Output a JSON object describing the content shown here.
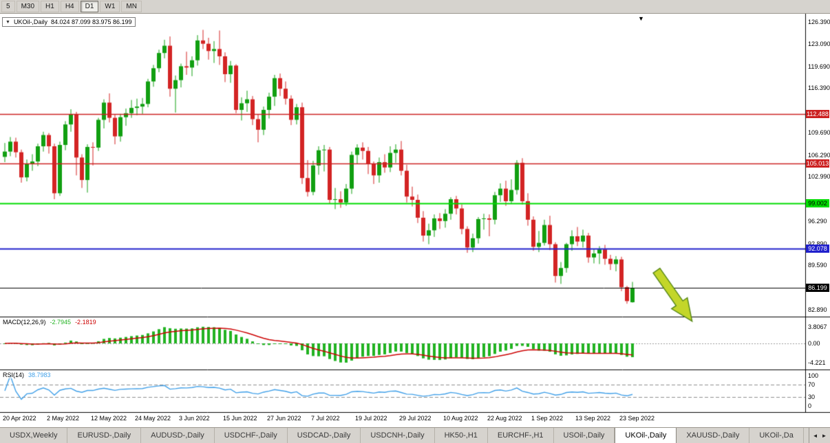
{
  "toolbar": {
    "periods": [
      {
        "label": "5",
        "active": false
      },
      {
        "label": "M30",
        "active": false
      },
      {
        "label": "H1",
        "active": false
      },
      {
        "label": "H4",
        "active": false
      },
      {
        "label": "D1",
        "active": true
      },
      {
        "label": "W1",
        "active": false
      },
      {
        "label": "MN",
        "active": false
      }
    ]
  },
  "chart": {
    "collapse_icon": "▼",
    "symbol_label": "UKOil-,Daily",
    "ohlc_label": "84.024 87.099 83.975 86.199",
    "shift_marker": "▼",
    "price_ticks": [
      "126.390",
      "123.090",
      "119.690",
      "116.390",
      "109.690",
      "106.290",
      "102.990",
      "96.290",
      "92.890",
      "89.590",
      "82.890"
    ],
    "hlines": [
      {
        "price": 112.488,
        "label": "112.488",
        "color": "#cc2020",
        "width": 1.5,
        "badge_bg": "#cc2020",
        "badge_fg": "#ffffff"
      },
      {
        "price": 105.013,
        "label": "105.013",
        "color": "#cc2020",
        "width": 1.5,
        "badge_bg": "#cc2020",
        "badge_fg": "#ffffff"
      },
      {
        "price": 99.002,
        "label": "99.002",
        "color": "#00dc00",
        "width": 2,
        "badge_bg": "#00dc00",
        "badge_fg": "#000000"
      },
      {
        "price": 92.078,
        "label": "92.078",
        "color": "#2020cc",
        "width": 2,
        "badge_bg": "#2020cc",
        "badge_fg": "#ffffff"
      },
      {
        "price": 86.199,
        "label": "86.199",
        "color": "#000000",
        "width": 1,
        "badge_bg": "#000000",
        "badge_fg": "#ffffff"
      }
    ],
    "colors": {
      "up": "#119f11",
      "down": "#d32424",
      "arrow_fill": "#c3d629",
      "arrow_stroke": "#5a8a1a"
    }
  },
  "chart_data": {
    "type": "candlestick",
    "symbol": "UKOil-",
    "timeframe": "Daily",
    "current_bar": {
      "open": 84.024,
      "high": 87.099,
      "low": 83.975,
      "close": 86.199
    },
    "y_axis_range": [
      81.8,
      127.6
    ],
    "horizontal_levels": [
      112.488,
      105.013,
      99.002,
      92.078,
      86.199
    ],
    "x_labels": [
      {
        "label": "20 Apr 2022",
        "i": 0
      },
      {
        "label": "2 May 2022",
        "i": 8
      },
      {
        "label": "12 May 2022",
        "i": 16
      },
      {
        "label": "24 May 2022",
        "i": 24
      },
      {
        "label": "3 Jun 2022",
        "i": 32
      },
      {
        "label": "15 Jun 2022",
        "i": 40
      },
      {
        "label": "27 Jun 2022",
        "i": 48
      },
      {
        "label": "7 Jul 2022",
        "i": 56
      },
      {
        "label": "19 Jul 2022",
        "i": 64
      },
      {
        "label": "29 Jul 2022",
        "i": 72
      },
      {
        "label": "10 Aug 2022",
        "i": 80
      },
      {
        "label": "22 Aug 2022",
        "i": 88
      },
      {
        "label": "1 Sep 2022",
        "i": 96
      },
      {
        "label": "13 Sep 2022",
        "i": 104
      },
      {
        "label": "23 Sep 2022",
        "i": 112
      }
    ],
    "candles_ohlc": [
      [
        106.0,
        108.1,
        105.2,
        106.8
      ],
      [
        106.8,
        109.0,
        106.1,
        108.3
      ],
      [
        108.3,
        108.9,
        105.9,
        106.7
      ],
      [
        106.7,
        107.1,
        102.1,
        102.9
      ],
      [
        102.9,
        105.6,
        102.3,
        105.0
      ],
      [
        105.0,
        106.4,
        103.9,
        105.3
      ],
      [
        105.3,
        108.0,
        104.6,
        107.6
      ],
      [
        107.6,
        109.8,
        106.8,
        109.3
      ],
      [
        109.3,
        109.6,
        106.5,
        107.6
      ],
      [
        107.6,
        108.0,
        99.6,
        100.5
      ],
      [
        100.5,
        108.3,
        100.1,
        107.8
      ],
      [
        107.8,
        111.4,
        107.0,
        110.9
      ],
      [
        110.9,
        113.2,
        109.8,
        112.4
      ],
      [
        112.4,
        112.8,
        103.2,
        105.9
      ],
      [
        105.9,
        106.4,
        101.3,
        102.5
      ],
      [
        102.5,
        107.9,
        100.6,
        107.5
      ],
      [
        107.5,
        108.2,
        104.7,
        107.4
      ],
      [
        107.4,
        111.9,
        106.9,
        111.6
      ],
      [
        111.6,
        114.7,
        110.3,
        114.2
      ],
      [
        114.2,
        115.6,
        111.2,
        111.9
      ],
      [
        111.9,
        112.4,
        107.9,
        109.1
      ],
      [
        109.1,
        112.5,
        108.3,
        112.0
      ],
      [
        112.0,
        113.3,
        110.7,
        112.6
      ],
      [
        112.6,
        114.6,
        111.9,
        113.4
      ],
      [
        113.4,
        114.8,
        112.3,
        113.6
      ],
      [
        113.6,
        114.9,
        112.5,
        114.0
      ],
      [
        114.0,
        117.8,
        113.5,
        117.4
      ],
      [
        117.4,
        119.9,
        116.6,
        119.4
      ],
      [
        119.4,
        122.2,
        118.8,
        121.7
      ],
      [
        121.7,
        123.7,
        120.9,
        122.8
      ],
      [
        122.8,
        124.2,
        115.1,
        116.3
      ],
      [
        116.3,
        118.3,
        112.7,
        117.6
      ],
      [
        117.6,
        120.1,
        116.5,
        119.7
      ],
      [
        119.7,
        121.9,
        118.4,
        119.5
      ],
      [
        119.5,
        121.2,
        118.2,
        120.6
      ],
      [
        120.6,
        124.4,
        119.8,
        123.6
      ],
      [
        123.6,
        125.2,
        122.3,
        123.1
      ],
      [
        123.1,
        124.0,
        120.7,
        122.0
      ],
      [
        122.0,
        123.5,
        120.2,
        122.3
      ],
      [
        122.3,
        125.1,
        119.9,
        121.2
      ],
      [
        121.2,
        121.8,
        117.3,
        118.5
      ],
      [
        118.5,
        120.5,
        117.2,
        119.8
      ],
      [
        119.8,
        120.0,
        112.6,
        113.1
      ],
      [
        113.1,
        115.0,
        111.5,
        114.1
      ],
      [
        114.1,
        116.0,
        112.8,
        114.7
      ],
      [
        114.7,
        115.2,
        110.8,
        111.7
      ],
      [
        111.7,
        112.4,
        108.2,
        110.1
      ],
      [
        110.1,
        113.6,
        109.3,
        113.1
      ],
      [
        113.1,
        115.7,
        111.8,
        115.1
      ],
      [
        115.1,
        118.4,
        113.7,
        117.9
      ],
      [
        117.9,
        118.6,
        115.2,
        116.3
      ],
      [
        116.3,
        117.4,
        113.9,
        114.8
      ],
      [
        114.8,
        115.3,
        110.8,
        111.6
      ],
      [
        111.6,
        114.0,
        110.9,
        113.5
      ],
      [
        113.5,
        114.2,
        101.9,
        102.8
      ],
      [
        102.8,
        105.5,
        100.0,
        100.7
      ],
      [
        100.7,
        105.4,
        100.2,
        104.7
      ],
      [
        104.7,
        107.6,
        103.3,
        107.0
      ],
      [
        107.0,
        107.8,
        103.8,
        107.1
      ],
      [
        107.1,
        107.5,
        98.9,
        99.5
      ],
      [
        99.5,
        101.3,
        98.1,
        99.6
      ],
      [
        99.6,
        100.8,
        98.3,
        99.1
      ],
      [
        99.1,
        101.9,
        98.6,
        101.2
      ],
      [
        101.2,
        106.8,
        100.4,
        106.3
      ],
      [
        106.3,
        107.9,
        104.9,
        107.4
      ],
      [
        107.4,
        108.2,
        105.6,
        106.9
      ],
      [
        106.9,
        107.5,
        103.4,
        104.9
      ],
      [
        104.9,
        105.3,
        101.9,
        103.2
      ],
      [
        103.2,
        105.9,
        102.1,
        105.2
      ],
      [
        105.2,
        106.4,
        103.6,
        104.4
      ],
      [
        104.4,
        107.6,
        103.7,
        106.6
      ],
      [
        106.6,
        107.9,
        105.1,
        107.1
      ],
      [
        107.1,
        108.4,
        103.2,
        103.9
      ],
      [
        103.9,
        104.8,
        99.1,
        100.0
      ],
      [
        100.0,
        101.5,
        98.5,
        99.5
      ],
      [
        99.5,
        100.3,
        96.0,
        96.8
      ],
      [
        96.8,
        97.8,
        93.2,
        94.1
      ],
      [
        94.1,
        95.9,
        92.8,
        94.9
      ],
      [
        94.9,
        97.3,
        93.9,
        96.7
      ],
      [
        96.7,
        97.5,
        95.1,
        96.3
      ],
      [
        96.3,
        98.1,
        95.3,
        97.4
      ],
      [
        97.4,
        99.9,
        96.5,
        99.6
      ],
      [
        99.6,
        100.1,
        97.3,
        98.2
      ],
      [
        98.2,
        98.8,
        94.3,
        95.1
      ],
      [
        95.1,
        95.5,
        91.5,
        92.3
      ],
      [
        92.3,
        94.4,
        91.6,
        93.7
      ],
      [
        93.7,
        96.9,
        92.9,
        96.6
      ],
      [
        96.6,
        97.4,
        95.0,
        96.7
      ],
      [
        96.7,
        97.3,
        94.0,
        96.5
      ],
      [
        96.5,
        100.7,
        95.8,
        100.2
      ],
      [
        100.2,
        102.0,
        99.2,
        101.2
      ],
      [
        101.2,
        102.4,
        98.6,
        99.3
      ],
      [
        99.3,
        102.6,
        98.9,
        101.0
      ],
      [
        101.0,
        105.5,
        100.3,
        105.1
      ],
      [
        105.1,
        105.8,
        98.8,
        99.3
      ],
      [
        99.3,
        100.5,
        95.6,
        96.5
      ],
      [
        96.5,
        97.0,
        91.8,
        92.4
      ],
      [
        92.4,
        94.8,
        91.6,
        93.0
      ],
      [
        93.0,
        96.5,
        92.6,
        95.7
      ],
      [
        95.7,
        97.1,
        91.9,
        92.8
      ],
      [
        92.8,
        93.1,
        87.0,
        88.0
      ],
      [
        88.0,
        90.1,
        86.8,
        89.2
      ],
      [
        89.2,
        93.0,
        88.5,
        92.8
      ],
      [
        92.8,
        94.9,
        91.8,
        94.0
      ],
      [
        94.0,
        95.4,
        92.5,
        93.2
      ],
      [
        93.2,
        95.0,
        92.3,
        94.1
      ],
      [
        94.1,
        94.5,
        90.0,
        90.8
      ],
      [
        90.8,
        92.1,
        89.9,
        91.4
      ],
      [
        91.4,
        92.5,
        89.8,
        92.0
      ],
      [
        92.0,
        92.7,
        89.7,
        90.6
      ],
      [
        90.6,
        91.2,
        88.9,
        89.8
      ],
      [
        89.8,
        91.0,
        88.7,
        90.5
      ],
      [
        90.5,
        90.9,
        85.7,
        86.3
      ],
      [
        86.3,
        86.5,
        83.8,
        84.2
      ],
      [
        84.024,
        87.099,
        83.975,
        86.199
      ]
    ],
    "indicators": {
      "macd": {
        "params": "12,26,9",
        "value": -2.7945,
        "signal": -2.1819,
        "scale_max": 3.8067,
        "scale_min": -4.221
      },
      "rsi": {
        "period": 14,
        "value": 38.7983,
        "levels": [
          70,
          30
        ]
      }
    }
  },
  "macd": {
    "title": "MACD(12,26,9)",
    "value": "-2.7945",
    "signal_value": "-2.1819",
    "scale": [
      "3.8067",
      "0.00",
      "-4.221"
    ],
    "colors": {
      "histogram": "#22b322",
      "signal": "#cc0000"
    }
  },
  "rsi": {
    "title": "RSI(14)",
    "value": "38.7983",
    "scale": [
      "100",
      "70",
      "30",
      "0"
    ],
    "levels": [
      70,
      30
    ],
    "color": "#3f9fe8"
  },
  "tabs": {
    "items": [
      {
        "label": "USDX,Weekly",
        "active": false
      },
      {
        "label": "EURUSD-,Daily",
        "active": false
      },
      {
        "label": "AUDUSD-,Daily",
        "active": false
      },
      {
        "label": "USDCHF-,Daily",
        "active": false
      },
      {
        "label": "USDCAD-,Daily",
        "active": false
      },
      {
        "label": "USDCNH-,Daily",
        "active": false
      },
      {
        "label": "HK50-,H1",
        "active": false
      },
      {
        "label": "EURCHF-,H1",
        "active": false
      },
      {
        "label": "USOil-,Daily",
        "active": false
      },
      {
        "label": "UKOil-,Daily",
        "active": true
      },
      {
        "label": "XAUUSD-,Daily",
        "active": false
      },
      {
        "label": "UKOil-,Da",
        "active": false
      }
    ],
    "scroll_left": "◄",
    "scroll_right": "►"
  }
}
